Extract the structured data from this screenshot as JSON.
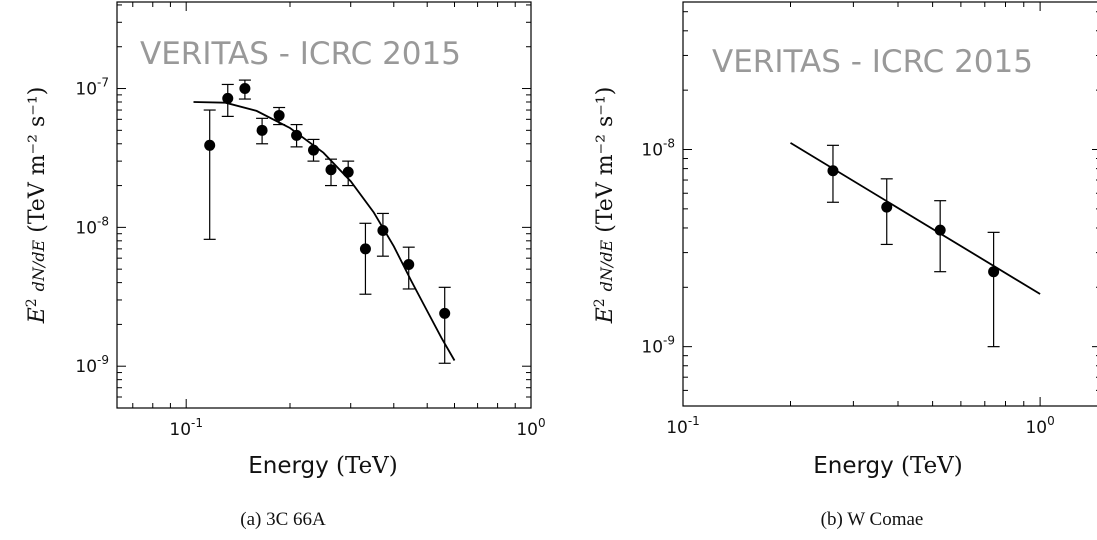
{
  "watermark": "VERITAS - ICRC 2015",
  "xlabel": {
    "text": "Energy",
    "unit": "(TeV)"
  },
  "ylabel": {
    "unit": "(TeV m⁻² s⁻¹)"
  },
  "chart_data": [
    {
      "type": "scatter",
      "caption": "(a) 3C 66A",
      "xscale": "log",
      "yscale": "log",
      "xlim": [
        0.063,
        1.0
      ],
      "ylim": [
        5e-10,
        4.2e-07
      ],
      "xticks": [
        {
          "value": 0.1,
          "base": "10",
          "exp": "-1"
        },
        {
          "value": 1.0,
          "base": "10",
          "exp": "0"
        }
      ],
      "yticks": [
        {
          "value": 1e-09,
          "base": "10",
          "exp": "-9"
        },
        {
          "value": 1e-08,
          "base": "10",
          "exp": "-8"
        },
        {
          "value": 1e-07,
          "base": "10",
          "exp": "-7"
        }
      ],
      "points": [
        {
          "x": 0.117,
          "y": 3.9e-08,
          "ylo": 8.2e-09,
          "yhi": 7e-08
        },
        {
          "x": 0.132,
          "y": 8.5e-08,
          "ylo": 6.3e-08,
          "yhi": 1.07e-07
        },
        {
          "x": 0.148,
          "y": 1e-07,
          "ylo": 8.4e-08,
          "yhi": 1.15e-07
        },
        {
          "x": 0.166,
          "y": 5e-08,
          "ylo": 4e-08,
          "yhi": 6.1e-08
        },
        {
          "x": 0.186,
          "y": 6.4e-08,
          "ylo": 5.5e-08,
          "yhi": 7.3e-08
        },
        {
          "x": 0.209,
          "y": 4.6e-08,
          "ylo": 3.8e-08,
          "yhi": 5.5e-08
        },
        {
          "x": 0.234,
          "y": 3.6e-08,
          "ylo": 3e-08,
          "yhi": 4.3e-08
        },
        {
          "x": 0.263,
          "y": 2.6e-08,
          "ylo": 2e-08,
          "yhi": 3.1e-08
        },
        {
          "x": 0.295,
          "y": 2.5e-08,
          "ylo": 2e-08,
          "yhi": 3e-08
        },
        {
          "x": 0.331,
          "y": 7e-09,
          "ylo": 3.3e-09,
          "yhi": 1.07e-08
        },
        {
          "x": 0.372,
          "y": 9.5e-09,
          "ylo": 6.2e-09,
          "yhi": 1.26e-08
        },
        {
          "x": 0.442,
          "y": 5.4e-09,
          "ylo": 3.6e-09,
          "yhi": 7.2e-09
        },
        {
          "x": 0.562,
          "y": 2.4e-09,
          "ylo": 1.05e-09,
          "yhi": 3.7e-09
        }
      ],
      "fit": {
        "x": [
          0.105,
          0.13,
          0.16,
          0.2,
          0.25,
          0.3,
          0.35,
          0.4,
          0.45,
          0.5,
          0.55,
          0.6
        ],
        "y": [
          8e-08,
          7.9e-08,
          6.9e-08,
          5.2e-08,
          3.45e-08,
          2.15e-08,
          1.28e-08,
          7.3e-09,
          4.1e-09,
          2.5e-09,
          1.6e-09,
          1.1e-09
        ]
      }
    },
    {
      "type": "scatter",
      "caption": "(b) W Comae",
      "xscale": "log",
      "yscale": "log",
      "xlim": [
        0.1,
        1.6
      ],
      "ylim": [
        5e-10,
        5.6e-08
      ],
      "xticks": [
        {
          "value": 0.1,
          "base": "10",
          "exp": "-1"
        },
        {
          "value": 1.0,
          "base": "10",
          "exp": "0"
        }
      ],
      "yticks": [
        {
          "value": 1e-09,
          "base": "10",
          "exp": "-9"
        },
        {
          "value": 1e-08,
          "base": "10",
          "exp": "-8"
        }
      ],
      "points": [
        {
          "x": 0.263,
          "y": 7.8e-09,
          "ylo": 5.4e-09,
          "yhi": 1.05e-08
        },
        {
          "x": 0.372,
          "y": 5.1e-09,
          "ylo": 3.3e-09,
          "yhi": 7.1e-09
        },
        {
          "x": 0.525,
          "y": 3.9e-09,
          "ylo": 2.4e-09,
          "yhi": 5.5e-09
        },
        {
          "x": 0.741,
          "y": 2.4e-09,
          "ylo": 1e-09,
          "yhi": 3.8e-09
        }
      ],
      "fit": {
        "x": [
          0.2,
          1.0
        ],
        "y": [
          1.08e-08,
          1.85e-09
        ]
      }
    }
  ]
}
